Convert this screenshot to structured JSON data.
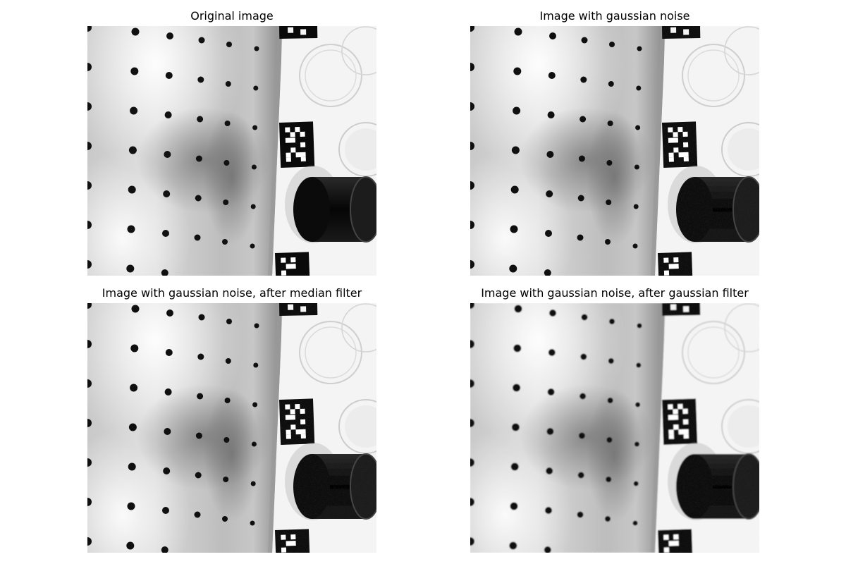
{
  "figure": {
    "panels": [
      {
        "title": "Original image",
        "variant": "original"
      },
      {
        "title": "Image with gaussian noise",
        "variant": "noise"
      },
      {
        "title": "Image with gaussian noise, after median filter",
        "variant": "median"
      },
      {
        "title": "Image with gaussian noise, after gaussian filter",
        "variant": "gaussian"
      }
    ]
  }
}
